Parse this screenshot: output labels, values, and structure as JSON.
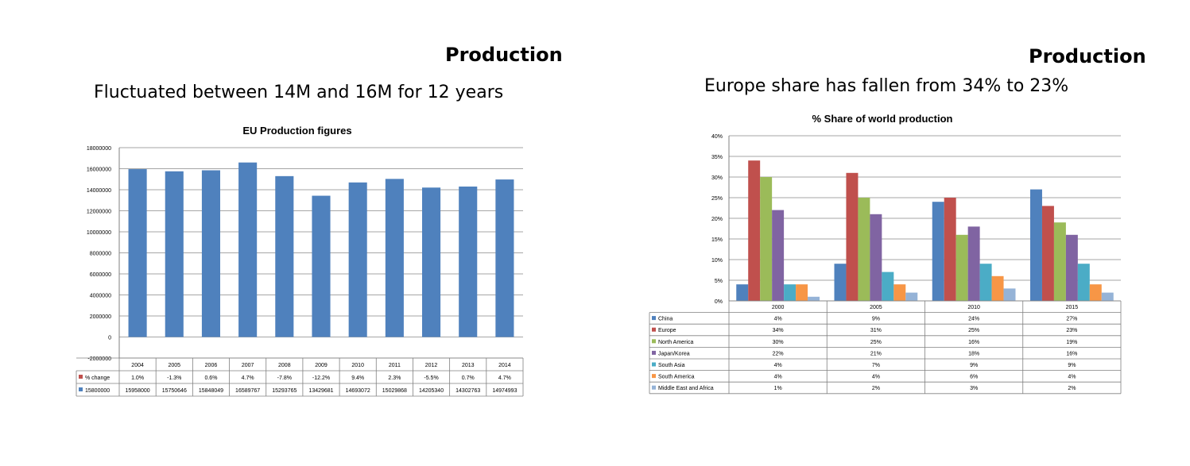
{
  "slides": [
    {
      "title": "Production",
      "subtitle": "Fluctuated between 14M and 16M for 12 years"
    },
    {
      "title": "Production",
      "subtitle": "Europe share has fallen from 34% to 23%"
    }
  ],
  "chart_data": [
    {
      "type": "bar",
      "title": "EU Production  figures",
      "categories": [
        "2004",
        "2005",
        "2006",
        "2007",
        "2008",
        "2009",
        "2010",
        "2011",
        "2012",
        "2013",
        "2014"
      ],
      "ylim": [
        -2000000,
        18000000
      ],
      "yticks": [
        "18000000",
        "16000000",
        "14000000",
        "12000000",
        "10000000",
        "8000000",
        "6000000",
        "4000000",
        "2000000",
        "0",
        "-2000000"
      ],
      "series": [
        {
          "name": "15800000",
          "values": [
            15958000,
            15750646,
            15848049,
            16589767,
            15293765,
            13429681,
            14693072,
            15029868,
            14205340,
            14302763,
            14974993
          ],
          "labels": [
            "15958000",
            "15750646",
            "15848049",
            "16589767",
            "15293765",
            "13429681",
            "14693072",
            "15029868",
            "14205340",
            "14302763",
            "14974993"
          ],
          "color": "#4f81bd"
        }
      ],
      "table_rows": [
        {
          "name": "% change",
          "color": "#c0504d",
          "values": [
            "1.0%",
            "-1.3%",
            "0.6%",
            "4.7%",
            "-7.8%",
            "-12.2%",
            "9.4%",
            "2.3%",
            "-5.5%",
            "0.7%",
            "4.7%"
          ]
        }
      ],
      "grid": true
    },
    {
      "type": "bar",
      "title": "% Share of world production",
      "categories": [
        "2000",
        "2005",
        "2010",
        "2015"
      ],
      "ylim": [
        0,
        0.4
      ],
      "yticks": [
        "40%",
        "35%",
        "30%",
        "25%",
        "20%",
        "15%",
        "10%",
        "5%",
        "0%"
      ],
      "series": [
        {
          "name": "China",
          "values": [
            4,
            9,
            24,
            27
          ],
          "labels": [
            "4%",
            "9%",
            "24%",
            "27%"
          ],
          "color": "#4f81bd"
        },
        {
          "name": "Europe",
          "values": [
            34,
            31,
            25,
            23
          ],
          "labels": [
            "34%",
            "31%",
            "25%",
            "23%"
          ],
          "color": "#c0504d"
        },
        {
          "name": "North America",
          "values": [
            30,
            25,
            16,
            19
          ],
          "labels": [
            "30%",
            "25%",
            "16%",
            "19%"
          ],
          "color": "#9bbb59"
        },
        {
          "name": "Japan/Korea",
          "values": [
            22,
            21,
            18,
            16
          ],
          "labels": [
            "22%",
            "21%",
            "18%",
            "16%"
          ],
          "color": "#8064a2"
        },
        {
          "name": "South Asia",
          "values": [
            4,
            7,
            9,
            9
          ],
          "labels": [
            "4%",
            "7%",
            "9%",
            "9%"
          ],
          "color": "#4bacc6"
        },
        {
          "name": "South America",
          "values": [
            4,
            4,
            6,
            4
          ],
          "labels": [
            "4%",
            "4%",
            "6%",
            "4%"
          ],
          "color": "#f79646"
        },
        {
          "name": "Middle East and Africa",
          "values": [
            1,
            2,
            3,
            2
          ],
          "labels": [
            "1%",
            "2%",
            "3%",
            "2%"
          ],
          "color": "#95b3d7"
        }
      ],
      "grid": true
    }
  ]
}
